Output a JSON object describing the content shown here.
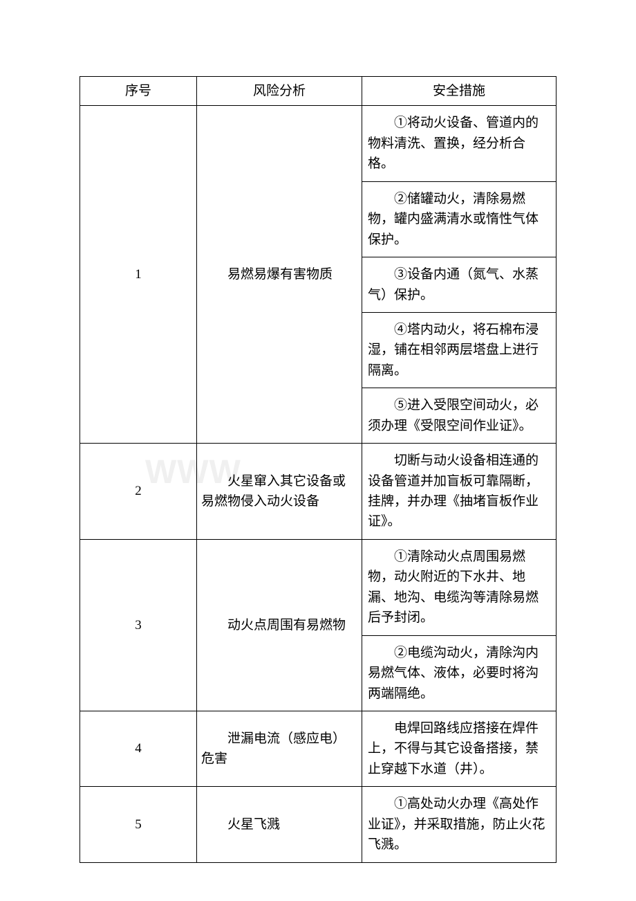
{
  "table": {
    "headers": {
      "seq": "序号",
      "risk": "风险分析",
      "measure": "安全措施"
    },
    "rows": [
      {
        "seq": "1",
        "risk": "易燃易爆有害物质",
        "measures": [
          "①将动火设备、管道内的物料清洗、置换，经分析合格。",
          "②储罐动火，清除易燃物，罐内盛满清水或惰性气体保护。",
          "③设备内通（氮气、水蒸气）保护。",
          "④塔内动火，将石棉布浸湿，铺在相邻两层塔盘上进行隔离。",
          "⑤进入受限空间动火，必须办理《受限空间作业证》。"
        ]
      },
      {
        "seq": "2",
        "risk": "火星窜入其它设备或易燃物侵入动火设备",
        "measures": [
          "切断与动火设备相连通的设备管道并加盲板可靠隔断，挂牌，并办理《抽堵盲板作业证》。"
        ]
      },
      {
        "seq": "3",
        "risk": "动火点周围有易燃物",
        "measures": [
          "①清除动火点周围易燃物，动火附近的下水井、地漏、地沟、电缆沟等清除易燃后予封闭。",
          "②电缆沟动火，清除沟内易燃气体、液体，必要时将沟两端隔绝。"
        ]
      },
      {
        "seq": "4",
        "risk": "泄漏电流（感应电）危害",
        "measures": [
          "电焊回路线应搭接在焊件上，不得与其它设备搭接，禁止穿越下水道（井）。"
        ]
      },
      {
        "seq": "5",
        "risk": "火星飞溅",
        "measures": [
          "①高处动火办理《高处作业证》，并采取措施，防止火花飞溅。"
        ]
      }
    ]
  },
  "watermark": "WWW"
}
